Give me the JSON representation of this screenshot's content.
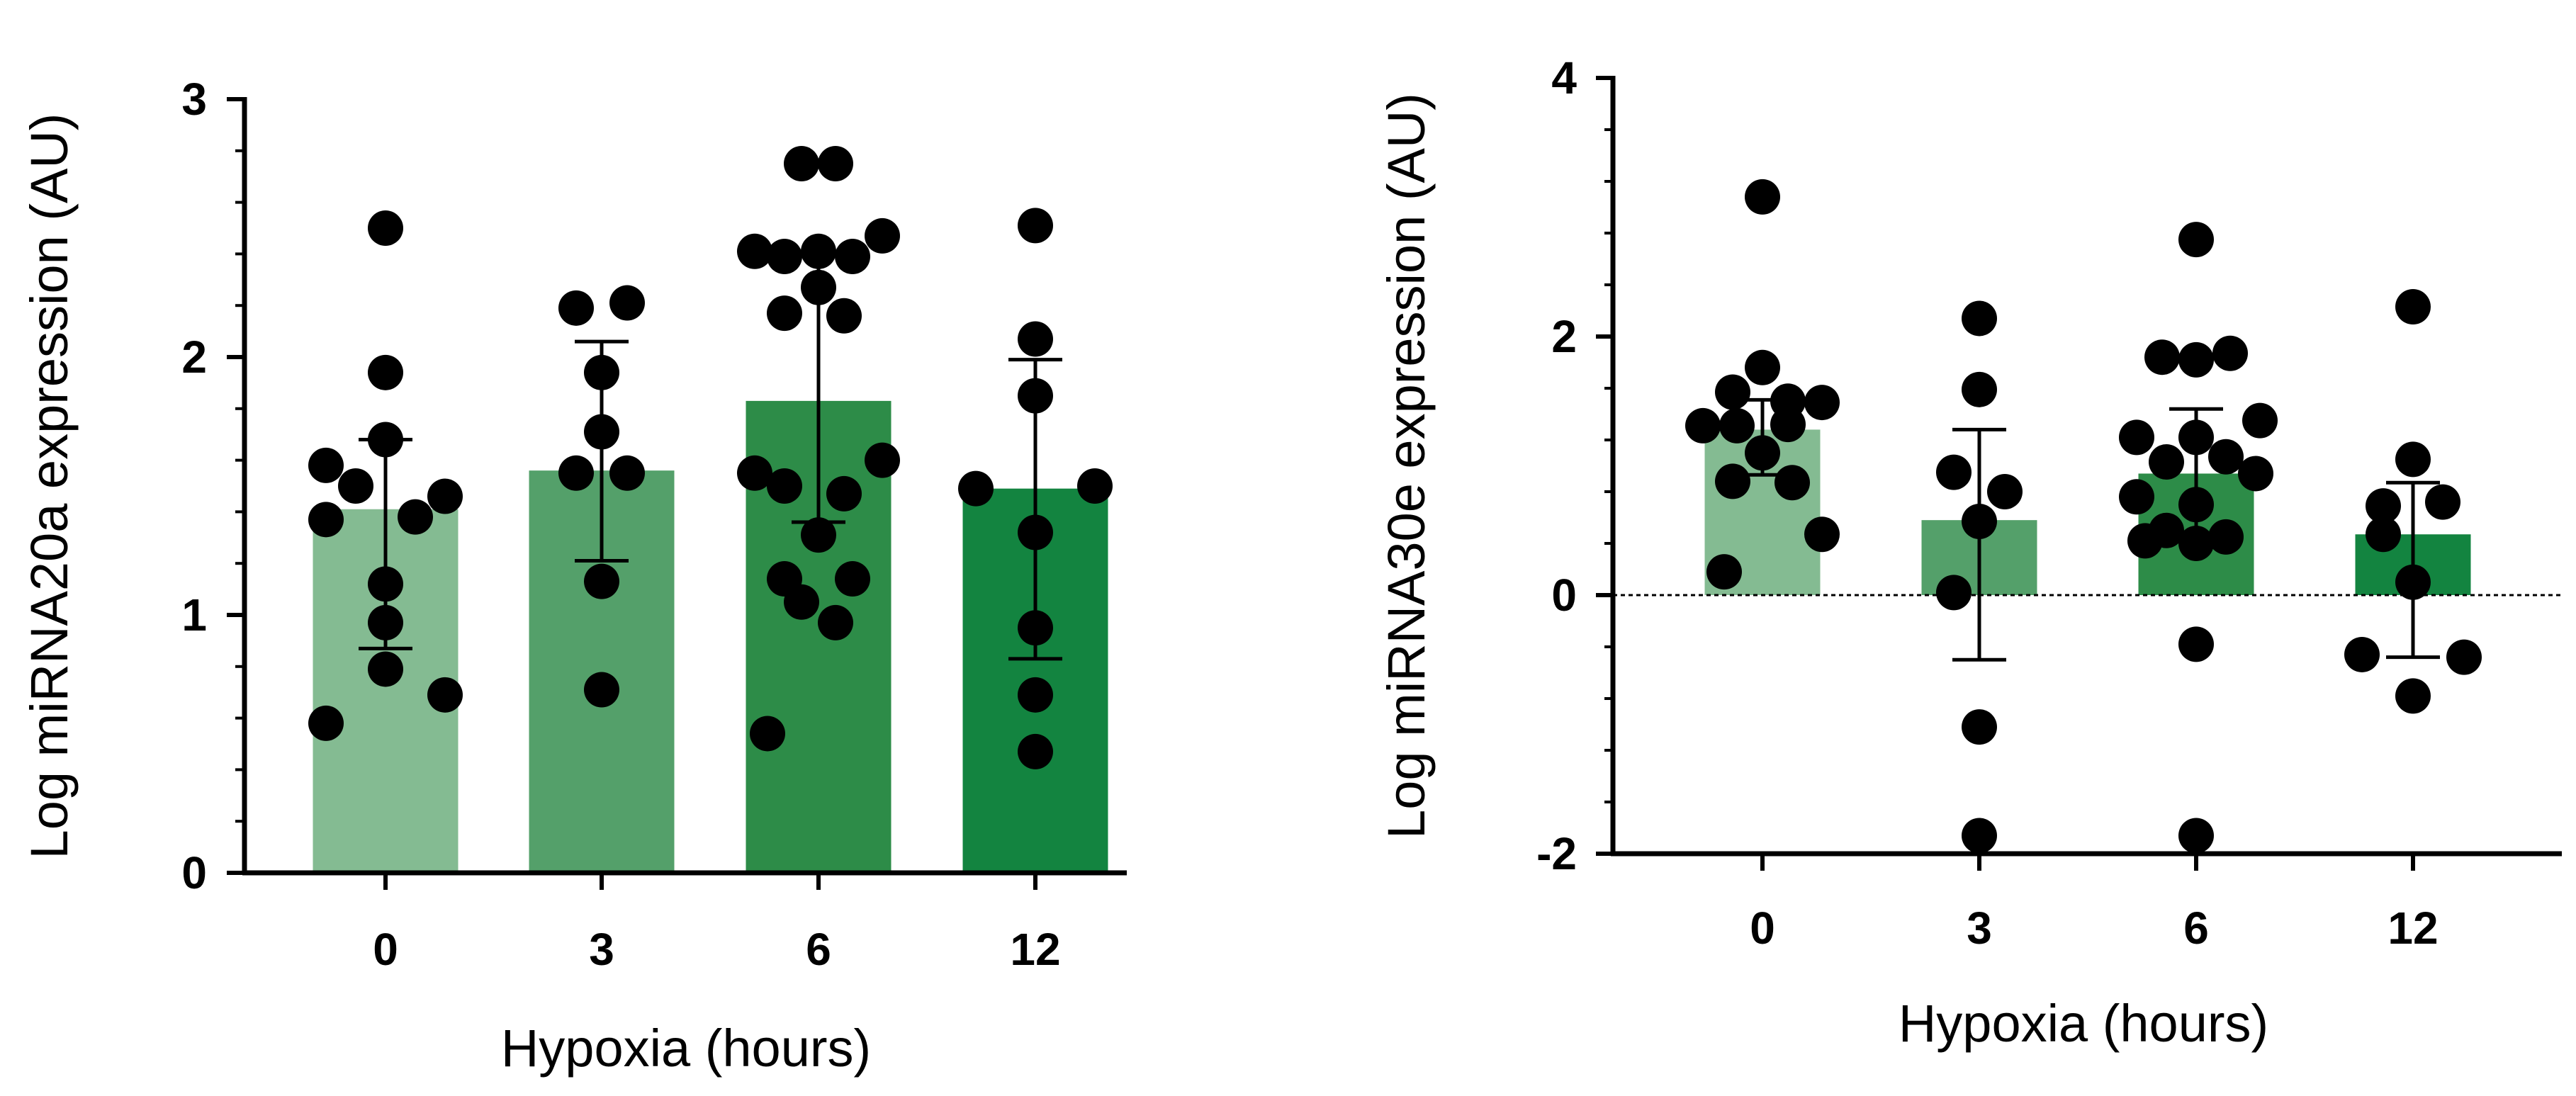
{
  "chart_data": [
    {
      "type": "bar",
      "title": "",
      "xlabel": "Hypoxia (hours)",
      "ylabel": "Log miRNA20a expression (AU)",
      "categories": [
        "0",
        "3",
        "6",
        "12"
      ],
      "ylim": [
        0,
        3
      ],
      "yticks": [
        0,
        1,
        2,
        3
      ],
      "ytick_labels": [
        "0",
        "1",
        "2",
        "3"
      ],
      "zero_line": false,
      "bar_colors": [
        "#84bb92",
        "#54a06a",
        "#2d8c48",
        "#138440"
      ],
      "series": [
        {
          "name": "mean",
          "values": [
            1.41,
            1.56,
            1.83,
            1.49
          ]
        },
        {
          "name": "sd_lower",
          "values": [
            0.87,
            1.21,
            1.36,
            0.83
          ]
        },
        {
          "name": "sd_upper",
          "values": [
            1.68,
            2.06,
            2.41,
            1.99
          ]
        }
      ],
      "points": [
        [
          {
            "dx": 0.0,
            "y": 2.5
          },
          {
            "dx": 0.0,
            "y": 1.94
          },
          {
            "dx": 0.0,
            "y": 1.68
          },
          {
            "dx": -0.7,
            "y": 1.58
          },
          {
            "dx": 0.7,
            "y": 1.46
          },
          {
            "dx": -0.35,
            "y": 1.5
          },
          {
            "dx": 0.35,
            "y": 1.38
          },
          {
            "dx": -0.7,
            "y": 1.37
          },
          {
            "dx": 0.0,
            "y": 1.12
          },
          {
            "dx": 0.0,
            "y": 0.97
          },
          {
            "dx": 0.0,
            "y": 0.79
          },
          {
            "dx": 0.7,
            "y": 0.69
          },
          {
            "dx": -0.7,
            "y": 0.58
          }
        ],
        [
          {
            "dx": -0.3,
            "y": 2.19
          },
          {
            "dx": 0.3,
            "y": 2.21
          },
          {
            "dx": 0.0,
            "y": 1.94
          },
          {
            "dx": 0.0,
            "y": 1.71
          },
          {
            "dx": -0.3,
            "y": 1.55
          },
          {
            "dx": 0.3,
            "y": 1.55
          },
          {
            "dx": 0.0,
            "y": 1.13
          },
          {
            "dx": 0.0,
            "y": 0.71
          }
        ],
        [
          {
            "dx": -0.2,
            "y": 2.75
          },
          {
            "dx": 0.2,
            "y": 2.75
          },
          {
            "dx": -0.75,
            "y": 2.41
          },
          {
            "dx": -0.4,
            "y": 2.39
          },
          {
            "dx": 0.0,
            "y": 2.41
          },
          {
            "dx": 0.4,
            "y": 2.39
          },
          {
            "dx": 0.75,
            "y": 2.47
          },
          {
            "dx": 0.0,
            "y": 2.27
          },
          {
            "dx": -0.4,
            "y": 2.17
          },
          {
            "dx": 0.3,
            "y": 2.16
          },
          {
            "dx": 0.75,
            "y": 1.6
          },
          {
            "dx": -0.75,
            "y": 1.55
          },
          {
            "dx": -0.4,
            "y": 1.5
          },
          {
            "dx": 0.3,
            "y": 1.47
          },
          {
            "dx": 0.0,
            "y": 1.31
          },
          {
            "dx": -0.4,
            "y": 1.14
          },
          {
            "dx": 0.4,
            "y": 1.14
          },
          {
            "dx": -0.2,
            "y": 1.05
          },
          {
            "dx": 0.2,
            "y": 0.97
          },
          {
            "dx": -0.6,
            "y": 0.54
          }
        ],
        [
          {
            "dx": 0.0,
            "y": 2.51
          },
          {
            "dx": 0.0,
            "y": 2.07
          },
          {
            "dx": 0.0,
            "y": 1.85
          },
          {
            "dx": -0.7,
            "y": 1.49
          },
          {
            "dx": 0.7,
            "y": 1.5
          },
          {
            "dx": 0.0,
            "y": 1.32
          },
          {
            "dx": 0.0,
            "y": 0.95
          },
          {
            "dx": 0.0,
            "y": 0.69
          },
          {
            "dx": 0.0,
            "y": 0.47
          }
        ]
      ]
    },
    {
      "type": "bar",
      "title": "",
      "xlabel": "Hypoxia (hours)",
      "ylabel": "Log miRNA30e expression (AU)",
      "categories": [
        "0",
        "3",
        "6",
        "12"
      ],
      "ylim": [
        -2,
        4
      ],
      "yticks": [
        -2,
        0,
        2,
        4
      ],
      "ytick_labels": [
        "-2",
        "0",
        "2",
        "4"
      ],
      "zero_line": true,
      "bar_colors": [
        "#84bb92",
        "#54a06a",
        "#2d8c48",
        "#138440"
      ],
      "series": [
        {
          "name": "mean",
          "values": [
            1.28,
            0.58,
            0.94,
            0.47
          ]
        },
        {
          "name": "sd_lower",
          "values": [
            0.93,
            -0.5,
            0.42,
            -0.48
          ]
        },
        {
          "name": "sd_upper",
          "values": [
            1.51,
            1.28,
            1.44,
            0.87
          ]
        }
      ],
      "points": [
        [
          {
            "dx": 0.0,
            "y": 3.08
          },
          {
            "dx": 0.0,
            "y": 1.76
          },
          {
            "dx": -0.35,
            "y": 1.57
          },
          {
            "dx": 0.3,
            "y": 1.5
          },
          {
            "dx": 0.7,
            "y": 1.49
          },
          {
            "dx": -0.7,
            "y": 1.31
          },
          {
            "dx": -0.3,
            "y": 1.31
          },
          {
            "dx": 0.3,
            "y": 1.32
          },
          {
            "dx": 0.0,
            "y": 1.1
          },
          {
            "dx": -0.35,
            "y": 0.88
          },
          {
            "dx": 0.35,
            "y": 0.87
          },
          {
            "dx": 0.7,
            "y": 0.47
          },
          {
            "dx": -0.45,
            "y": 0.18
          }
        ],
        [
          {
            "dx": 0.0,
            "y": 2.14
          },
          {
            "dx": 0.0,
            "y": 1.59
          },
          {
            "dx": -0.3,
            "y": 0.95
          },
          {
            "dx": 0.3,
            "y": 0.8
          },
          {
            "dx": 0.0,
            "y": 0.57
          },
          {
            "dx": -0.3,
            "y": 0.02
          },
          {
            "dx": 0.0,
            "y": -1.02
          },
          {
            "dx": 0.0,
            "y": -1.86
          }
        ],
        [
          {
            "dx": 0.0,
            "y": 2.75
          },
          {
            "dx": -0.4,
            "y": 1.84
          },
          {
            "dx": 0.0,
            "y": 1.82
          },
          {
            "dx": 0.4,
            "y": 1.87
          },
          {
            "dx": -0.7,
            "y": 1.22
          },
          {
            "dx": 0.0,
            "y": 1.22
          },
          {
            "dx": 0.75,
            "y": 1.35
          },
          {
            "dx": -0.35,
            "y": 1.03
          },
          {
            "dx": 0.35,
            "y": 1.07
          },
          {
            "dx": -0.7,
            "y": 0.76
          },
          {
            "dx": 0.0,
            "y": 0.7
          },
          {
            "dx": 0.7,
            "y": 0.94
          },
          {
            "dx": -0.35,
            "y": 0.5
          },
          {
            "dx": 0.35,
            "y": 0.45
          },
          {
            "dx": -0.6,
            "y": 0.42
          },
          {
            "dx": 0.0,
            "y": 0.4
          },
          {
            "dx": 0.0,
            "y": -0.38
          },
          {
            "dx": 0.0,
            "y": -1.86
          }
        ],
        [
          {
            "dx": 0.0,
            "y": 2.23
          },
          {
            "dx": 0.0,
            "y": 1.05
          },
          {
            "dx": -0.35,
            "y": 0.69
          },
          {
            "dx": 0.35,
            "y": 0.72
          },
          {
            "dx": -0.35,
            "y": 0.47
          },
          {
            "dx": 0.0,
            "y": 0.1
          },
          {
            "dx": -0.6,
            "y": -0.46
          },
          {
            "dx": 0.6,
            "y": -0.48
          },
          {
            "dx": 0.0,
            "y": -0.78
          }
        ]
      ]
    }
  ]
}
